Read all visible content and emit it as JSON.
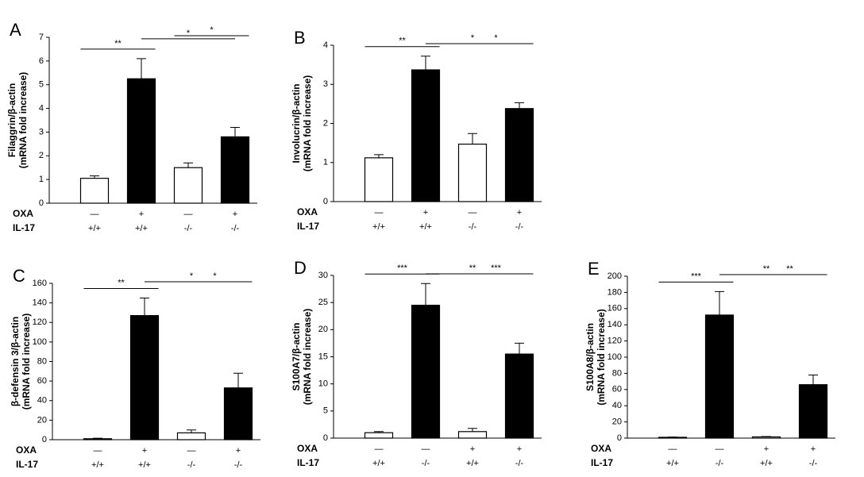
{
  "chart_data": [
    {
      "type": "bar",
      "panel": "A",
      "ylabel": [
        "Filaggrin/β-actin",
        "(mRNA fold increase)"
      ],
      "row_labels": [
        "OXA",
        "IL-17"
      ],
      "rows": [
        [
          "—",
          "+",
          "—",
          "+"
        ],
        [
          "+/+",
          "+/+",
          "-/-",
          "-/-"
        ]
      ],
      "values": [
        1.05,
        5.25,
        1.5,
        2.8
      ],
      "errors": [
        0.1,
        0.85,
        0.2,
        0.4
      ],
      "colors": [
        "#ffffff",
        "#000000",
        "#ffffff",
        "#000000"
      ],
      "ylim": [
        0,
        7
      ],
      "yticks": [
        0,
        1,
        2,
        3,
        4,
        5,
        6,
        7
      ],
      "significance": [
        {
          "pair": [
            0,
            1
          ],
          "label": "**"
        },
        {
          "pair": [
            1,
            3
          ],
          "label": "*"
        },
        {
          "pair": [
            2,
            3
          ],
          "label": "*"
        }
      ]
    },
    {
      "type": "bar",
      "panel": "B",
      "ylabel": [
        "Involucrin/β-actin",
        "(mRNA fold increase)"
      ],
      "row_labels": [
        "OXA",
        "IL-17"
      ],
      "rows": [
        [
          "—",
          "+",
          "—",
          "+"
        ],
        [
          "+/+",
          "+/+",
          "-/-",
          "-/-"
        ]
      ],
      "values": [
        1.12,
        3.37,
        1.47,
        2.38
      ],
      "errors": [
        0.08,
        0.35,
        0.27,
        0.15
      ],
      "colors": [
        "#ffffff",
        "#000000",
        "#ffffff",
        "#000000"
      ],
      "ylim": [
        0,
        4
      ],
      "yticks": [
        0,
        1,
        2,
        3,
        4
      ],
      "significance": [
        {
          "pair": [
            0,
            1
          ],
          "label": "**"
        },
        {
          "pair": [
            1,
            3
          ],
          "label": "*"
        },
        {
          "pair": [
            2,
            3
          ],
          "label": "*"
        }
      ]
    },
    {
      "type": "bar",
      "panel": "C",
      "ylabel": [
        "β-defensin 3/β-actin",
        "(mRNA fold increase)"
      ],
      "row_labels": [
        "OXA",
        "IL-17"
      ],
      "rows": [
        [
          "—",
          "+",
          "—",
          "+"
        ],
        [
          "+/+",
          "+/+",
          "-/-",
          "-/-"
        ]
      ],
      "values": [
        1,
        127,
        7,
        53
      ],
      "errors": [
        0.5,
        18,
        3,
        15
      ],
      "colors": [
        "#ffffff",
        "#000000",
        "#ffffff",
        "#000000"
      ],
      "ylim": [
        0,
        160
      ],
      "yticks": [
        0,
        20,
        40,
        60,
        80,
        100,
        120,
        140,
        160
      ],
      "significance": [
        {
          "pair": [
            0,
            1
          ],
          "label": "**"
        },
        {
          "pair": [
            1,
            3
          ],
          "label": "*"
        },
        {
          "pair": [
            2,
            3
          ],
          "label": "*"
        }
      ]
    },
    {
      "type": "bar",
      "panel": "D",
      "ylabel": [
        "S100A7/β-actin",
        "(mRNA fold increase)"
      ],
      "row_labels": [
        "OXA",
        "IL-17"
      ],
      "rows": [
        [
          "—",
          "—",
          "+",
          "+"
        ],
        [
          "+/+",
          "-/-",
          "+/+",
          "-/-"
        ]
      ],
      "values": [
        1,
        24.5,
        1.2,
        15.5
      ],
      "errors": [
        0.2,
        4,
        0.6,
        2
      ],
      "colors": [
        "#ffffff",
        "#000000",
        "#ffffff",
        "#000000"
      ],
      "ylim": [
        0,
        30
      ],
      "yticks": [
        0,
        5,
        10,
        15,
        20,
        25,
        30
      ],
      "significance": [
        {
          "pair": [
            0,
            1
          ],
          "label": "***"
        },
        {
          "pair": [
            1,
            3
          ],
          "label": "**"
        },
        {
          "pair": [
            2,
            3
          ],
          "label": "***"
        }
      ]
    },
    {
      "type": "bar",
      "panel": "E",
      "ylabel": [
        "S100A8/β-actin",
        "(mRNA fold increase)"
      ],
      "row_labels": [
        "OXA",
        "IL-17"
      ],
      "rows": [
        [
          "—",
          "—",
          "+",
          "+"
        ],
        [
          "+/+",
          "-/-",
          "+/+",
          "-/-"
        ]
      ],
      "values": [
        1,
        152,
        1.5,
        66
      ],
      "errors": [
        0.3,
        29,
        0.5,
        12
      ],
      "colors": [
        "#ffffff",
        "#000000",
        "#ffffff",
        "#000000"
      ],
      "ylim": [
        0,
        200
      ],
      "yticks": [
        0,
        20,
        40,
        60,
        80,
        100,
        120,
        140,
        160,
        180,
        200
      ],
      "significance": [
        {
          "pair": [
            0,
            1
          ],
          "label": "***"
        },
        {
          "pair": [
            1,
            3
          ],
          "label": "**"
        },
        {
          "pair": [
            2,
            3
          ],
          "label": "**"
        }
      ]
    }
  ]
}
